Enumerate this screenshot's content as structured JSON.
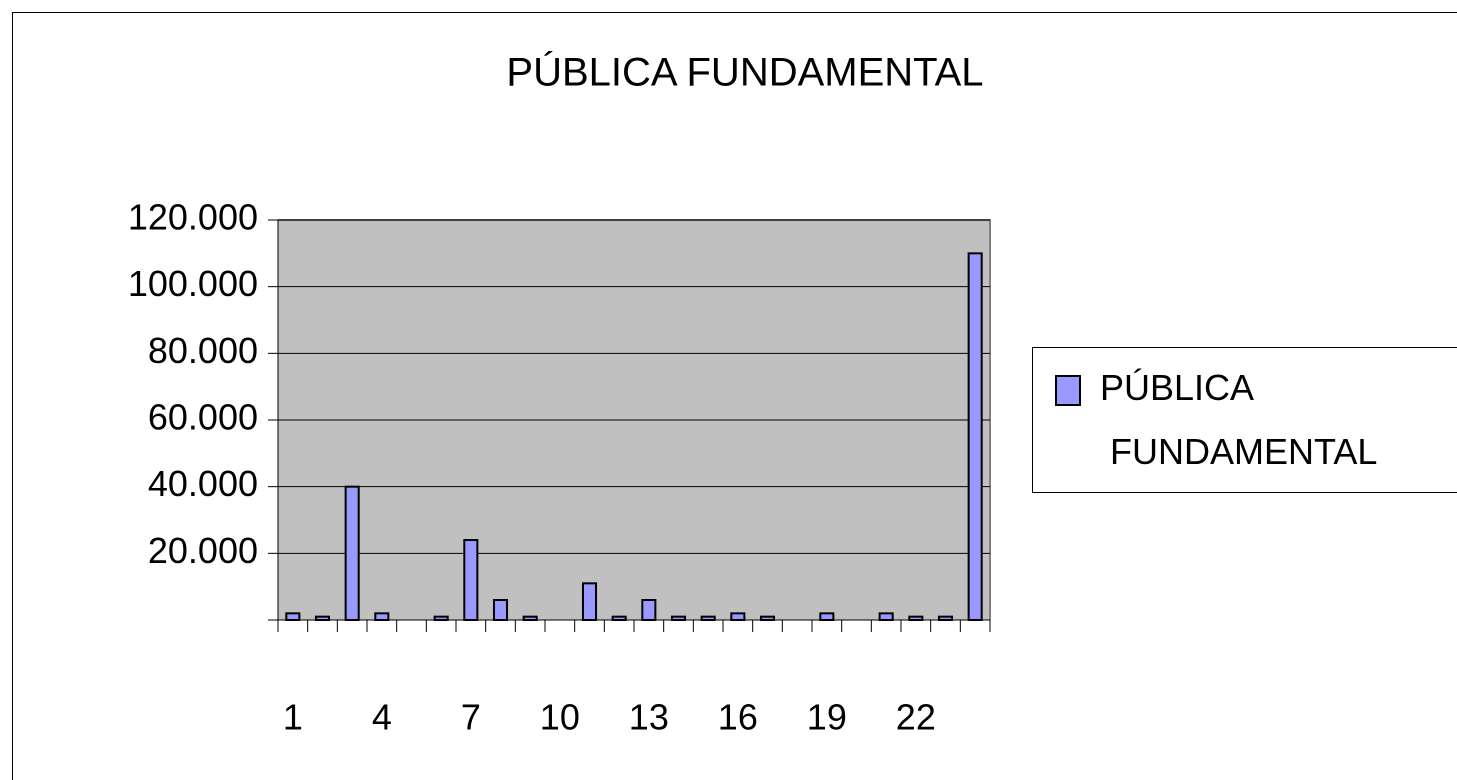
{
  "chart_data": {
    "type": "bar",
    "title": "PÚBLICA FUNDAMENTAL",
    "categories": [
      1,
      null,
      null,
      4,
      null,
      null,
      7,
      null,
      null,
      10,
      null,
      null,
      13,
      null,
      null,
      16,
      null,
      null,
      19,
      null,
      null,
      22,
      null,
      null
    ],
    "series": [
      {
        "name": "PÚBLICA FUNDAMENTAL",
        "color": "#9999ff",
        "values": [
          2000,
          1000,
          40000,
          2000,
          0,
          1000,
          24000,
          6000,
          1000,
          0,
          11000,
          1000,
          6000,
          1000,
          1000,
          2000,
          1000,
          0,
          2000,
          0,
          2000,
          1000,
          1000,
          110000
        ]
      }
    ],
    "ylim": [
      0,
      120000
    ],
    "yticks": [
      {
        "value": 20000,
        "label": "20.000"
      },
      {
        "value": 40000,
        "label": "40.000"
      },
      {
        "value": 60000,
        "label": "60.000"
      },
      {
        "value": 80000,
        "label": "80.000"
      },
      {
        "value": 100000,
        "label": "100.000"
      },
      {
        "value": 120000,
        "label": "120.000"
      }
    ],
    "grid": true,
    "legend": "right"
  }
}
